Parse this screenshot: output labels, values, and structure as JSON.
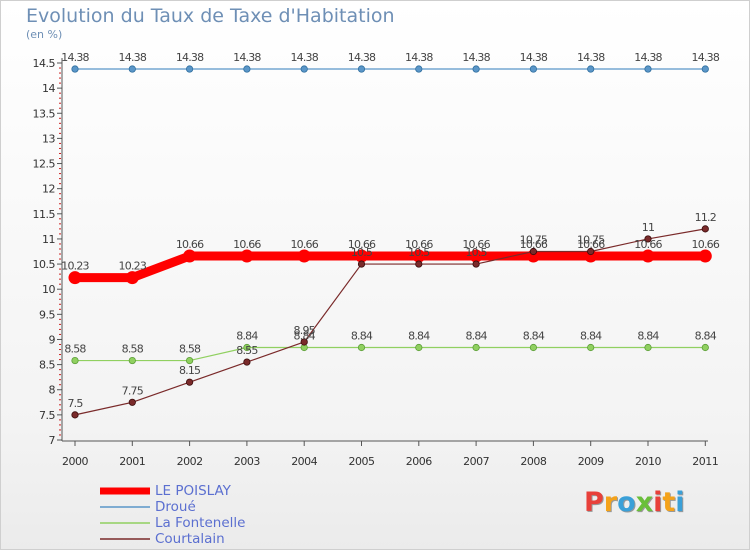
{
  "header": {
    "title": "Evolution du Taux de Taxe d'Habitation",
    "unit": "(en %)"
  },
  "chart_data": {
    "type": "line",
    "title": "Evolution du Taux de Taxe d'Habitation",
    "ylabel": "(en %)",
    "xlabel": "",
    "ylim": [
      7,
      14.5
    ],
    "categories": [
      "2000",
      "2001",
      "2002",
      "2003",
      "2004",
      "2005",
      "2006",
      "2007",
      "2008",
      "2009",
      "2010",
      "2011"
    ],
    "yticks": [
      "7",
      "7.5",
      "8",
      "8.5",
      "9",
      "9.5",
      "10",
      "10.5",
      "11",
      "11.5",
      "12",
      "12.5",
      "13",
      "13.5",
      "14",
      "14.5"
    ],
    "series": [
      {
        "name": "LE POISLAY",
        "color": "#ff0000",
        "values": [
          10.23,
          10.23,
          10.66,
          10.66,
          10.66,
          10.66,
          10.66,
          10.66,
          10.66,
          10.66,
          10.66,
          10.66
        ],
        "labels": [
          "10.23",
          "10.23",
          "10.66",
          "10.66",
          "10.66",
          "10.66",
          "10.66",
          "10.66",
          "10.66",
          "10.66",
          "10.66",
          "10.66"
        ]
      },
      {
        "name": "Droué",
        "color": "#5a96c8",
        "values": [
          14.38,
          14.38,
          14.38,
          14.38,
          14.38,
          14.38,
          14.38,
          14.38,
          14.38,
          14.38,
          14.38,
          14.38
        ],
        "labels": [
          "14.38",
          "14.38",
          "14.38",
          "14.38",
          "14.38",
          "14.38",
          "14.38",
          "14.38",
          "14.38",
          "14.38",
          "14.38",
          "14.38"
        ]
      },
      {
        "name": "La Fontenelle",
        "color": "#90d060",
        "values": [
          8.58,
          8.58,
          8.58,
          8.84,
          8.84,
          8.84,
          8.84,
          8.84,
          8.84,
          8.84,
          8.84,
          8.84
        ],
        "labels": [
          "8.58",
          "8.58",
          "8.58",
          "8.84",
          "8.84",
          "8.84",
          "8.84",
          "8.84",
          "8.84",
          "8.84",
          "8.84",
          "8.84"
        ]
      },
      {
        "name": "Courtalain",
        "color": "#7a2a2a",
        "values": [
          7.5,
          7.75,
          8.15,
          8.55,
          8.95,
          10.5,
          10.5,
          10.5,
          10.75,
          10.75,
          11,
          11.2
        ],
        "labels": [
          "7.5",
          "7.75",
          "8.15",
          "8.55",
          "8.95",
          "10.5",
          "10.5",
          "10.5",
          "10.75",
          "10.75",
          "11",
          "11.2"
        ]
      }
    ]
  },
  "legend": {
    "items": [
      {
        "label": "LE POISLAY",
        "color": "#ff0000"
      },
      {
        "label": "Droué",
        "color": "#5a96c8"
      },
      {
        "label": "La Fontenelle",
        "color": "#90d060"
      },
      {
        "label": "Courtalain",
        "color": "#7a2a2a"
      }
    ]
  },
  "branding": {
    "logo_text": "Proxiti",
    "logo_colors": [
      "#e8403a",
      "#f4a21a",
      "#3aa0d8",
      "#6abf3a",
      "#e8403a",
      "#f4a21a",
      "#3aa0d8"
    ]
  }
}
